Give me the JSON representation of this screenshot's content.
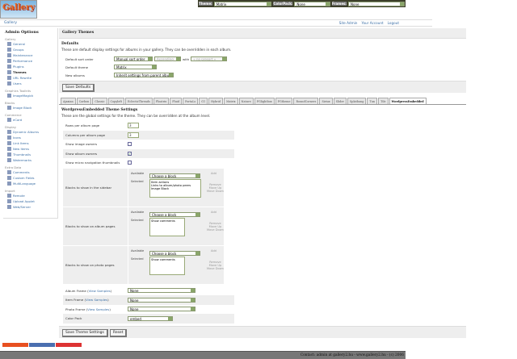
{
  "topbar": {
    "theme_label": "Theme:",
    "theme_value": "Matrix",
    "colorpack_label": "ColorPack:",
    "colorpack_value": "None",
    "frames_label": "Frames:",
    "frames_value": "None"
  },
  "logo": {
    "text": "Gallery"
  },
  "breadcrumb": "Gallery",
  "system_links": [
    "Site Admin",
    "Your Account",
    "Logout"
  ],
  "sidebar": {
    "title": "Admin Options",
    "groups": [
      {
        "name": "Gallery",
        "items": [
          "General",
          "Groups",
          "Maintenance",
          "Performance",
          "Plugins",
          "Themes",
          "URL Rewrite",
          "Users"
        ]
      },
      {
        "name": "Graphics Toolkits",
        "items": [
          "ImageMagick"
        ]
      },
      {
        "name": "Blocks",
        "items": [
          "Image Block"
        ]
      },
      {
        "name": "Commerce",
        "items": [
          "eCard"
        ]
      },
      {
        "name": "Display",
        "items": [
          "Dynamic Albums",
          "Icons",
          "Link Items",
          "New Items",
          "Thumbnails",
          "Watermarks"
        ]
      },
      {
        "name": "Extra Data",
        "items": [
          "Comments",
          "Custom Fields",
          "MultiLanguage"
        ]
      },
      {
        "name": "Import",
        "items": [
          "Remote",
          "Upload Applet",
          "Web/Server"
        ]
      }
    ],
    "current": "Themes"
  },
  "main": {
    "title": "Gallery Themes",
    "defaults": {
      "heading": "Defaults",
      "description": "These are default display settings for albums in your gallery. They can be overridden in each album.",
      "sort_label": "Default sort order",
      "sort_value": "Manual sort order",
      "direction_value": "Ascending",
      "with_label": "with",
      "presort_value": "« no presort »",
      "theme_label": "Default theme",
      "theme_value": "Matrix",
      "new_albums_label": "New albums",
      "new_albums_value": "Inherit settings from parent album",
      "save_button": "Save Defaults"
    },
    "tabs": [
      "Ajaxian",
      "Carbon",
      "Classic",
      "Copyleft",
      "EclecticThreads",
      "Floatrix",
      "Fluid",
      "PortaLs",
      "G1",
      "Hybrid",
      "Matrix",
      "Nature",
      "PGlightbox",
      "PGtheme",
      "RoundCorners",
      "Siriux",
      "Slider",
      "Splatbang",
      "Tun",
      "Tile",
      "WordpressEmbedded"
    ],
    "active_tab": "WordpressEmbedded",
    "settings": {
      "heading": "WordpressEmbedded Theme Settings",
      "description": "These are the global settings for the theme. They can be overridden at the album level.",
      "rows_label": "Rows per album page",
      "rows_value": "3",
      "cols_label": "Columns per album page",
      "cols_value": "3",
      "image_owners_label": "Show image owners",
      "image_owners_checked": false,
      "album_owners_label": "Show album owners",
      "album_owners_checked": true,
      "micro_label": "Show micro navigation thumbnails",
      "micro_checked": false,
      "available_label": "Available",
      "selected_label": "Selected",
      "choose_block": "Choose a block",
      "add": "Add",
      "remove": "Remove",
      "move_up": "Move Up",
      "move_down": "Move Down",
      "sidebar_blocks_label": "Blocks to show in the sidebar",
      "sidebar_blocks": [
        "Item actions",
        "Links to album/photo peers",
        "Image Block"
      ],
      "album_blocks_label": "Blocks to show on album pages",
      "album_blocks": [
        "Show comments"
      ],
      "photo_blocks_label": "Blocks to show on photo pages",
      "photo_blocks": [
        "Show comments"
      ],
      "view_samples": "View Samples",
      "album_frame_label": "Album Frame",
      "album_frame_value": "None",
      "item_frame_label": "Item Frame",
      "item_frame_value": "None",
      "photo_frame_label": "Photo Frame",
      "photo_frame_value": "None",
      "color_pack_label": "Color Pack",
      "color_pack_value": "embed",
      "save_button": "Save Theme Settings",
      "reset_button": "Reset"
    }
  },
  "footer": "Contact: admin at gallery2.hu - www.gallery2.hu - (c) 2006",
  "colors": {
    "link": "#3a6ea5",
    "topbar": "#3c3f2a",
    "footer": "#777777"
  }
}
